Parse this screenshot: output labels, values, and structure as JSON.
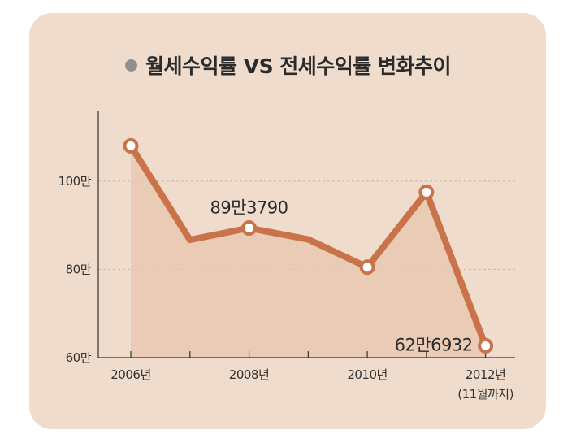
{
  "title": "월세수익률 VS 전세수익률 변화추이",
  "colors": {
    "card_background": "#efdccc",
    "line": "#c8734a",
    "area_fill": "#e8c8b2",
    "grid": "#c8b4a6",
    "axis": "#333333",
    "legend_dot": "#8f8f8f"
  },
  "chart_data": {
    "type": "line",
    "x": [
      2006,
      2007,
      2008,
      2009,
      2010,
      2011,
      2012
    ],
    "values": [
      1080000,
      867000,
      893790,
      868000,
      805000,
      975000,
      626932
    ],
    "x_tick_values": [
      2006,
      2008,
      2010,
      2012
    ],
    "x_tick_labels": [
      "2006년",
      "2008년",
      "2010년",
      "2012년"
    ],
    "x_tick_sublabels": [
      "",
      "",
      "",
      "(11월까지)"
    ],
    "y_tick_values": [
      600000,
      800000,
      1000000
    ],
    "y_tick_labels": [
      "60만",
      "80만",
      "100만"
    ],
    "ylim": [
      600000,
      1160000
    ],
    "xlim": [
      2005.45,
      2012.5
    ],
    "grid": true,
    "area_fill": true,
    "data_labels": [
      {
        "index": 2,
        "text": "89만3790"
      },
      {
        "index": 6,
        "text": "62만6932"
      }
    ],
    "marked_points": [
      0,
      2,
      4,
      5,
      6
    ]
  }
}
